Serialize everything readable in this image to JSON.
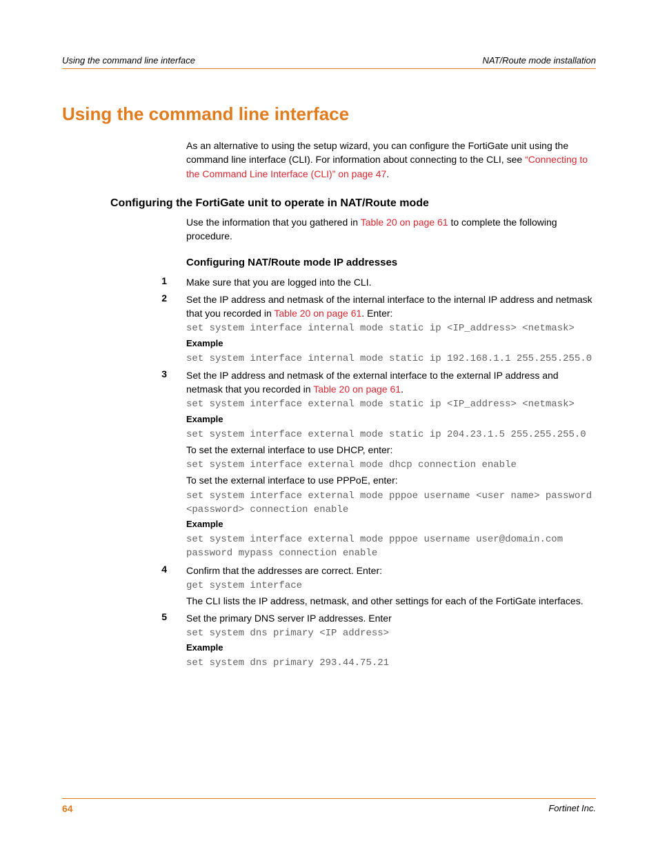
{
  "colors": {
    "accent": "#e07b1e",
    "link": "#d9262e",
    "code": "#606060",
    "text": "#000000",
    "background": "#ffffff"
  },
  "typography": {
    "body_font": "Arial",
    "code_font": "Courier New",
    "h1_size_pt": 19,
    "h2_size_pt": 12,
    "h3_size_pt": 11,
    "body_size_pt": 10.5
  },
  "header": {
    "left": "Using the command line interface",
    "right": "NAT/Route mode installation"
  },
  "h1": "Using the command line interface",
  "intro": {
    "pre": "As an alternative to using the setup wizard, you can configure the FortiGate unit using the command line interface (CLI). For information about connecting to the CLI, see ",
    "link": "“Connecting to the Command Line Interface (CLI)” on page 47",
    "post": "."
  },
  "h2": "Configuring the FortiGate unit to operate in NAT/Route mode",
  "h2_para": {
    "pre": "Use the information that you gathered in ",
    "link": "Table 20 on page 61",
    "post": " to complete the following procedure."
  },
  "h3": "Configuring NAT/Route mode IP addresses",
  "steps": {
    "s1": {
      "num": "1",
      "text": "Make sure that you are logged into the CLI."
    },
    "s2": {
      "num": "2",
      "pre": "Set the IP address and netmask of the internal interface to the internal IP address and netmask that you recorded in ",
      "link": "Table 20 on page 61",
      "post": ". Enter:",
      "cmd": "set system interface internal mode static ip <IP_address> <netmask>",
      "example_label": "Example",
      "example": "set system interface internal mode static ip 192.168.1.1 255.255.255.0"
    },
    "s3": {
      "num": "3",
      "pre": "Set the IP address and netmask of the external interface to the external IP address and netmask that you recorded in ",
      "link": "Table 20 on page 61",
      "post": ".",
      "cmd": "set system interface external mode static ip <IP_address> <netmask>",
      "example_label": "Example",
      "example": "set system interface external mode static ip 204.23.1.5 255.255.255.0",
      "dhcp_text": "To set the external interface to use DHCP, enter:",
      "dhcp_cmd": "set system interface external mode dhcp connection enable",
      "pppoe_text": "To set the external interface to use PPPoE, enter:",
      "pppoe_cmd": "set system interface external mode pppoe username <user name> password <password> connection enable",
      "example_label2": "Example",
      "example2": "set system interface external mode pppoe username user@domain.com password mypass connection enable"
    },
    "s4": {
      "num": "4",
      "text": "Confirm that the addresses are correct. Enter:",
      "cmd": "get system interface",
      "after": "The CLI lists the IP address, netmask, and other settings for each of the FortiGate interfaces."
    },
    "s5": {
      "num": "5",
      "text": "Set the primary DNS server IP addresses. Enter",
      "cmd": "set system dns primary <IP address>",
      "example_label": "Example",
      "example": "set system dns primary 293.44.75.21"
    }
  },
  "footer": {
    "page": "64",
    "company": "Fortinet Inc."
  }
}
